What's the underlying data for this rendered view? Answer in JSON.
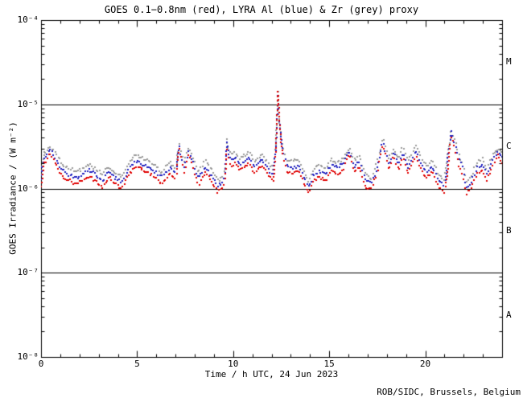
{
  "title": "GOES 0.1−0.8nm (red), LYRA Al (blue) & Zr (grey) proxy",
  "credit": "ROB/SIDC, Brussels, Belgium",
  "colors": {
    "red": "#e00000",
    "blue": "#2020c0",
    "grey": "#9a9a9a",
    "axis": "#000000",
    "background": "#ffffff"
  },
  "axes": {
    "x": {
      "label": "Time / h UTC, 24 Jun 2023",
      "min": 0,
      "max": 24,
      "major_ticks": [
        0,
        5,
        10,
        15,
        20
      ],
      "minor_step": 1
    },
    "y": {
      "label": "GOES Irradiance / (W m⁻²)",
      "tick_labels": [
        "10⁻⁴",
        "10⁻⁵",
        "10⁻⁶",
        "10⁻⁷",
        "10⁻⁸"
      ],
      "tick_exponents": [
        -4,
        -5,
        -6,
        -7,
        -8
      ],
      "scale": "log"
    },
    "hlines_exponents": [
      -5,
      -6,
      -7
    ],
    "flare_classes": [
      {
        "label": "M",
        "mid_exponent": -4.5
      },
      {
        "label": "C",
        "mid_exponent": -5.5
      },
      {
        "label": "B",
        "mid_exponent": -6.5
      },
      {
        "label": "A",
        "mid_exponent": -7.5
      }
    ]
  },
  "chart_data": {
    "type": "scatter",
    "title": "GOES 0.1−0.8nm (red), LYRA Al (blue) & Zr (grey) proxy",
    "xlabel": "Time / h UTC, 24 Jun 2023",
    "ylabel": "GOES Irradiance / (W m⁻²)",
    "x_range": [
      0,
      24
    ],
    "y_range_exponents": [
      -8,
      -4
    ],
    "grid": false,
    "legend_position": "in-title",
    "values_unit": "1e-6 W m^-2",
    "x": [
      0.0,
      0.15,
      0.45,
      0.7,
      1.0,
      1.4,
      1.8,
      2.2,
      2.5,
      2.8,
      3.2,
      3.5,
      3.8,
      4.2,
      4.6,
      4.9,
      5.3,
      5.6,
      6.0,
      6.3,
      6.7,
      7.0,
      7.2,
      7.45,
      7.7,
      8.0,
      8.2,
      8.55,
      8.9,
      9.2,
      9.45,
      9.6,
      9.65,
      9.72,
      9.9,
      10.1,
      10.35,
      10.6,
      10.85,
      11.1,
      11.5,
      11.8,
      12.1,
      12.25,
      12.28,
      12.3,
      12.32,
      12.36,
      12.4,
      12.45,
      12.52,
      12.6,
      12.8,
      13.1,
      13.4,
      13.7,
      13.95,
      14.2,
      14.5,
      14.8,
      15.1,
      15.4,
      15.7,
      16.05,
      16.3,
      16.55,
      16.9,
      17.2,
      17.5,
      17.8,
      18.1,
      18.35,
      18.6,
      18.85,
      19.1,
      19.5,
      19.8,
      20.1,
      20.35,
      20.7,
      21.0,
      21.15,
      21.25,
      21.35,
      21.5,
      21.65,
      21.8,
      21.95,
      22.15,
      22.4,
      22.7,
      22.95,
      23.2,
      23.5,
      23.75,
      24.0
    ],
    "series": [
      {
        "name": "GOES 0.1−0.8nm",
        "color_key": "red",
        "values": [
          1.1,
          1.9,
          2.7,
          2.0,
          1.5,
          1.25,
          1.15,
          1.25,
          1.4,
          1.25,
          1.05,
          1.35,
          1.18,
          1.0,
          1.5,
          1.8,
          1.65,
          1.55,
          1.3,
          1.15,
          1.5,
          1.3,
          2.9,
          1.5,
          2.6,
          1.5,
          1.1,
          1.55,
          1.18,
          0.92,
          1.0,
          1.3,
          3.6,
          2.4,
          1.8,
          2.0,
          1.65,
          1.8,
          2.0,
          1.5,
          1.85,
          1.45,
          1.25,
          3.0,
          6.0,
          10.0,
          14.5,
          11.0,
          7.0,
          4.5,
          3.2,
          2.3,
          1.6,
          1.5,
          1.6,
          1.15,
          0.88,
          1.25,
          1.35,
          1.25,
          1.6,
          1.5,
          1.6,
          2.6,
          1.55,
          1.8,
          1.05,
          0.97,
          1.5,
          3.4,
          1.65,
          2.5,
          1.65,
          2.3,
          1.5,
          2.4,
          1.65,
          1.3,
          1.6,
          1.05,
          0.92,
          1.6,
          3.0,
          4.3,
          3.4,
          2.4,
          1.8,
          1.4,
          0.86,
          1.0,
          1.5,
          1.65,
          1.25,
          1.8,
          2.5,
          2.0
        ]
      },
      {
        "name": "LYRA Al proxy",
        "color_key": "blue",
        "values": [
          1.3,
          2.24,
          2.92,
          2.36,
          1.77,
          1.48,
          1.36,
          1.48,
          1.65,
          1.48,
          1.24,
          1.59,
          1.39,
          1.18,
          1.77,
          2.12,
          1.95,
          1.83,
          1.53,
          1.36,
          1.77,
          1.53,
          3.13,
          1.77,
          2.81,
          1.77,
          1.3,
          1.83,
          1.39,
          1.09,
          1.18,
          1.53,
          4.0,
          2.8,
          2.12,
          2.36,
          1.95,
          2.12,
          2.36,
          1.77,
          2.18,
          1.71,
          1.48,
          3.2,
          5.5,
          9.0,
          12.5,
          10.0,
          6.5,
          4.7,
          3.4,
          2.71,
          1.89,
          1.77,
          1.89,
          1.36,
          1.04,
          1.48,
          1.59,
          1.48,
          1.89,
          1.77,
          1.89,
          2.81,
          1.83,
          2.12,
          1.24,
          1.14,
          1.77,
          3.67,
          1.95,
          2.7,
          1.95,
          2.71,
          1.77,
          2.83,
          1.95,
          1.53,
          1.89,
          1.24,
          1.09,
          1.89,
          3.4,
          4.8,
          3.8,
          2.8,
          2.1,
          1.65,
          1.01,
          1.18,
          1.77,
          1.95,
          1.48,
          2.12,
          2.7,
          2.36
        ]
      },
      {
        "name": "LYRA Zr proxy",
        "color_key": "grey",
        "values": [
          1.52,
          2.62,
          3.11,
          2.76,
          2.07,
          1.73,
          1.59,
          1.73,
          1.93,
          1.73,
          1.45,
          1.86,
          1.63,
          1.38,
          2.07,
          2.48,
          2.28,
          2.14,
          1.79,
          1.59,
          2.07,
          1.79,
          3.34,
          2.07,
          2.99,
          2.07,
          1.52,
          2.14,
          1.63,
          1.27,
          1.38,
          1.79,
          4.4,
          3.1,
          2.48,
          2.76,
          2.28,
          2.48,
          2.76,
          2.07,
          2.55,
          2.0,
          1.73,
          3.4,
          5.8,
          9.5,
          13.8,
          10.8,
          7.0,
          5.0,
          3.6,
          3.17,
          2.21,
          2.07,
          2.21,
          1.59,
          1.21,
          1.73,
          1.86,
          1.73,
          2.21,
          2.07,
          2.21,
          2.99,
          2.14,
          2.48,
          1.45,
          1.34,
          2.07,
          3.91,
          2.28,
          2.88,
          2.28,
          3.17,
          2.07,
          3.31,
          2.28,
          1.79,
          2.21,
          1.45,
          1.27,
          2.21,
          3.6,
          4.9,
          4.0,
          3.1,
          2.4,
          1.93,
          1.19,
          1.38,
          2.07,
          2.28,
          1.73,
          2.48,
          2.88,
          2.76
        ]
      }
    ]
  }
}
